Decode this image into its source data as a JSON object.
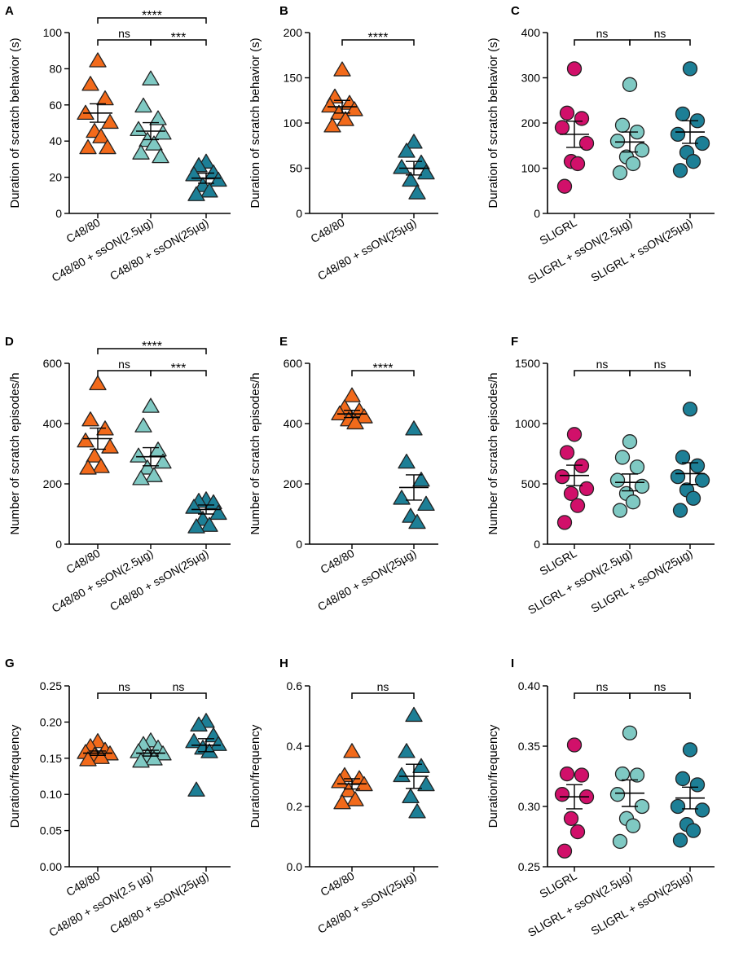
{
  "colors": {
    "orange": "#F26A1B",
    "teal_light": "#7FC9C3",
    "teal_dark": "#1D7F96",
    "magenta": "#D1106A",
    "stroke": "#222222"
  },
  "chart_data": [
    {
      "panel": "A",
      "type": "scatter",
      "marker": "triangle",
      "ylabel": "Duration of scratch behavior (s)",
      "ylim": [
        0,
        100
      ],
      "yticks": [
        "0",
        "20",
        "40",
        "60",
        "80",
        "100"
      ],
      "categories": [
        "C48/80",
        "C48/80 + ssON(2.5µg)",
        "C48/80 + ssON(25µg)"
      ],
      "series": [
        {
          "name": "C48/80",
          "color": "orange",
          "values": [
            84,
            71,
            63,
            55,
            50,
            45,
            42,
            36,
            36
          ],
          "mean": 55.5,
          "sem": 5.1
        },
        {
          "name": "C48/80 + ssON(2.5µg)",
          "color": "teal_light",
          "values": [
            74,
            59,
            52,
            46,
            44,
            40,
            38,
            33,
            31
          ],
          "mean": 45.5,
          "sem": 4.7
        },
        {
          "name": "C48/80 + ssON(25µg)",
          "color": "teal_dark",
          "values": [
            28,
            26,
            22,
            21,
            18,
            15,
            12,
            10
          ],
          "mean": 19.5,
          "sem": 2.8
        }
      ],
      "significance": [
        {
          "from": 0,
          "to": 2,
          "label": "****",
          "level": 0
        },
        {
          "from": 0,
          "to": 1,
          "label": "ns",
          "level": 1
        },
        {
          "from": 1,
          "to": 2,
          "label": "***",
          "level": 1
        }
      ]
    },
    {
      "panel": "B",
      "type": "scatter",
      "marker": "triangle",
      "ylabel": "Duration of scratch behavior (s)",
      "ylim": [
        0,
        200
      ],
      "yticks": [
        "0",
        "50",
        "100",
        "150",
        "200"
      ],
      "categories": [
        "C48/80",
        "C48/80 + ssON(25µg)"
      ],
      "series": [
        {
          "name": "C48/80",
          "color": "orange",
          "values": [
            158,
            128,
            121,
            118,
            114,
            110,
            103,
            96
          ],
          "mean": 118,
          "sem": 7
        },
        {
          "name": "C48/80 + ssON(25µg)",
          "color": "teal_dark",
          "values": [
            78,
            68,
            55,
            50,
            44,
            36,
            22
          ],
          "mean": 50,
          "sem": 7.5
        }
      ],
      "significance": [
        {
          "from": 0,
          "to": 1,
          "label": "****",
          "level": 1
        }
      ]
    },
    {
      "panel": "C",
      "type": "scatter",
      "marker": "circle",
      "ylabel": "Duration of scratch behavior (s)",
      "ylim": [
        0,
        400
      ],
      "yticks": [
        "0",
        "100",
        "200",
        "300",
        "400"
      ],
      "categories": [
        "SLIGRL",
        "SLIGRL + ssON(2.5µg)",
        "SLIGRL + ssON(25µg)"
      ],
      "series": [
        {
          "name": "SLIGRL",
          "color": "magenta",
          "values": [
            320,
            222,
            210,
            190,
            155,
            115,
            110,
            60
          ],
          "mean": 175,
          "sem": 29
        },
        {
          "name": "SLIGRL + ssON(2.5µg)",
          "color": "teal_light",
          "values": [
            285,
            195,
            180,
            160,
            140,
            125,
            110,
            90
          ],
          "mean": 158,
          "sem": 22
        },
        {
          "name": "SLIGRL + ssON(25µg)",
          "color": "teal_dark",
          "values": [
            320,
            220,
            205,
            175,
            155,
            135,
            115,
            95
          ],
          "mean": 180,
          "sem": 25
        }
      ],
      "significance": [
        {
          "from": 0,
          "to": 1,
          "label": "ns",
          "level": 1
        },
        {
          "from": 1,
          "to": 2,
          "label": "ns",
          "level": 1
        }
      ]
    },
    {
      "panel": "D",
      "type": "scatter",
      "marker": "triangle",
      "ylabel": "Number of scratch episodes/h",
      "ylim": [
        0,
        600
      ],
      "yticks": [
        "0",
        "200",
        "400",
        "600"
      ],
      "categories": [
        "C48/80",
        "C48/80 + ssON(2.5µg)",
        "C48/80 + ssON(25µg)"
      ],
      "series": [
        {
          "name": "C48/80",
          "color": "orange",
          "values": [
            530,
            410,
            380,
            340,
            320,
            290,
            255,
            250
          ],
          "mean": 350,
          "sem": 35
        },
        {
          "name": "C48/80 + ssON(2.5µg)",
          "color": "teal_light",
          "values": [
            455,
            390,
            310,
            290,
            270,
            250,
            225,
            215
          ],
          "mean": 290,
          "sem": 30
        },
        {
          "name": "C48/80 + ssON(25µg)",
          "color": "teal_dark",
          "values": [
            145,
            140,
            135,
            120,
            100,
            80,
            60,
            55
          ],
          "mean": 115,
          "sem": 15
        }
      ],
      "significance": [
        {
          "from": 0,
          "to": 2,
          "label": "****",
          "level": 0
        },
        {
          "from": 0,
          "to": 1,
          "label": "ns",
          "level": 1
        },
        {
          "from": 1,
          "to": 2,
          "label": "***",
          "level": 1
        }
      ]
    },
    {
      "panel": "E",
      "type": "scatter",
      "marker": "triangle",
      "ylabel": "Number of scratch episodes/h",
      "ylim": [
        0,
        600
      ],
      "yticks": [
        "0",
        "200",
        "400",
        "600"
      ],
      "categories": [
        "C48/80",
        "C48/80 + ssON(25µg)"
      ],
      "series": [
        {
          "name": "C48/80",
          "color": "orange",
          "values": [
            490,
            450,
            440,
            430,
            420,
            410,
            400
          ],
          "mean": 432,
          "sem": 12
        },
        {
          "name": "C48/80 + ssON(25µg)",
          "color": "teal_dark",
          "values": [
            380,
            270,
            210,
            150,
            130,
            90,
            70
          ],
          "mean": 188,
          "sem": 42
        }
      ],
      "significance": [
        {
          "from": 0,
          "to": 1,
          "label": "****",
          "level": 1
        }
      ]
    },
    {
      "panel": "F",
      "type": "scatter",
      "marker": "circle",
      "ylabel": "Number of scratch episodes/h",
      "ylim": [
        0,
        1500
      ],
      "yticks": [
        "0",
        "500",
        "1000",
        "1500"
      ],
      "categories": [
        "SLIGRL",
        "SLIGRL + ssON(2.5µg)",
        "SLIGRL + ssON(25µg)"
      ],
      "series": [
        {
          "name": "SLIGRL",
          "color": "magenta",
          "values": [
            910,
            760,
            650,
            560,
            460,
            420,
            320,
            180
          ],
          "mean": 570,
          "sem": 85
        },
        {
          "name": "SLIGRL + ssON(2.5µg)",
          "color": "teal_light",
          "values": [
            850,
            720,
            640,
            530,
            480,
            420,
            350,
            280
          ],
          "mean": 512,
          "sem": 70
        },
        {
          "name": "SLIGRL + ssON(25µg)",
          "color": "teal_dark",
          "values": [
            1120,
            720,
            650,
            560,
            530,
            450,
            380,
            280
          ],
          "mean": 585,
          "sem": 90
        }
      ],
      "significance": [
        {
          "from": 0,
          "to": 1,
          "label": "ns",
          "level": 1
        },
        {
          "from": 1,
          "to": 2,
          "label": "ns",
          "level": 1
        }
      ]
    },
    {
      "panel": "G",
      "type": "scatter",
      "marker": "triangle",
      "ylabel": "Duration/frequency",
      "ylim": [
        0,
        0.25
      ],
      "yticks": [
        "0.00",
        "0.05",
        "0.10",
        "0.15",
        "0.20",
        "0.25"
      ],
      "categories": [
        "C48/80",
        "C48/80 + ssON(2.5 µg)",
        "C48/80 + ssON(25µg)"
      ],
      "series": [
        {
          "name": "C48/80",
          "color": "orange",
          "values": [
            0.172,
            0.165,
            0.16,
            0.157,
            0.155,
            0.153,
            0.15,
            0.147
          ],
          "mean": 0.157,
          "sem": 0.003
        },
        {
          "name": "C48/80 + ssON(2.5 µg)",
          "color": "teal_light",
          "values": [
            0.173,
            0.168,
            0.163,
            0.158,
            0.155,
            0.152,
            0.148,
            0.145
          ],
          "mean": 0.157,
          "sem": 0.004
        },
        {
          "name": "C48/80 + ssON(25µg)",
          "color": "teal_dark",
          "values": [
            0.2,
            0.195,
            0.18,
            0.172,
            0.168,
            0.163,
            0.158,
            0.105
          ],
          "mean": 0.168,
          "sem": 0.009
        }
      ],
      "significance": [
        {
          "from": 0,
          "to": 1,
          "label": "ns",
          "level": 1
        },
        {
          "from": 1,
          "to": 2,
          "label": "ns",
          "level": 1
        }
      ]
    },
    {
      "panel": "H",
      "type": "scatter",
      "marker": "triangle",
      "ylabel": "Duration/frequency",
      "ylim": [
        0,
        0.6
      ],
      "yticks": [
        "0.0",
        "0.2",
        "0.4",
        "0.6"
      ],
      "categories": [
        "C48/80",
        "C48/80 + ssON(25µg)"
      ],
      "series": [
        {
          "name": "C48/80",
          "color": "orange",
          "values": [
            0.38,
            0.3,
            0.29,
            0.28,
            0.27,
            0.25,
            0.22,
            0.21
          ],
          "mean": 0.275,
          "sem": 0.017
        },
        {
          "name": "C48/80 + ssON(25µg)",
          "color": "teal_dark",
          "values": [
            0.5,
            0.38,
            0.33,
            0.3,
            0.27,
            0.23,
            0.18
          ],
          "mean": 0.3,
          "sem": 0.04
        }
      ],
      "significance": [
        {
          "from": 0,
          "to": 1,
          "label": "ns",
          "level": 1
        }
      ]
    },
    {
      "panel": "I",
      "type": "scatter",
      "marker": "circle",
      "ylabel": "Duration/frequency",
      "ylim": [
        0.25,
        0.4
      ],
      "yticks": [
        "0.25",
        "0.30",
        "0.35",
        "0.40"
      ],
      "categories": [
        "SLIGRL",
        "SLIGRL + ssON(2.5µg)",
        "SLIGRL + ssON(25µg)"
      ],
      "series": [
        {
          "name": "SLIGRL",
          "color": "magenta",
          "values": [
            0.351,
            0.327,
            0.326,
            0.31,
            0.308,
            0.29,
            0.279,
            0.263
          ],
          "mean": 0.308,
          "sem": 0.01
        },
        {
          "name": "SLIGRL + ssON(2.5µg)",
          "color": "teal_light",
          "values": [
            0.361,
            0.327,
            0.326,
            0.31,
            0.3,
            0.29,
            0.284,
            0.271
          ],
          "mean": 0.311,
          "sem": 0.011
        },
        {
          "name": "SLIGRL + ssON(25µg)",
          "color": "teal_dark",
          "values": [
            0.347,
            0.323,
            0.318,
            0.3,
            0.297,
            0.285,
            0.28,
            0.272
          ],
          "mean": 0.307,
          "sem": 0.009
        }
      ],
      "significance": [
        {
          "from": 0,
          "to": 1,
          "label": "ns",
          "level": 1
        },
        {
          "from": 1,
          "to": 2,
          "label": "ns",
          "level": 1
        }
      ]
    }
  ]
}
